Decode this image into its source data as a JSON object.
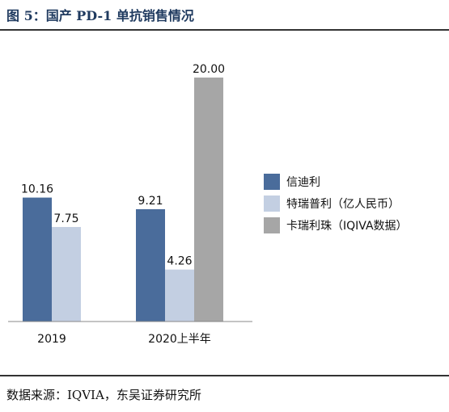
{
  "header": {
    "title": "图 5：国产 PD-1 单抗销售情况"
  },
  "footer": {
    "source": "数据来源：IQVIA，东吴证券研究所"
  },
  "chart_data": {
    "type": "bar",
    "categories": [
      "2019",
      "2020上半年"
    ],
    "series": [
      {
        "name": "信迪利",
        "values": [
          10.16,
          9.21
        ],
        "color": "#4a6c9b"
      },
      {
        "name": "特瑞普利（亿人民币）",
        "values": [
          7.75,
          4.26
        ],
        "color": "#c3cfe2"
      },
      {
        "name": "卡瑞利珠（IQIVA数据）",
        "values": [
          null,
          20.0
        ],
        "color": "#a6a6a6"
      }
    ],
    "data_labels": [
      [
        "10.16",
        "9.21"
      ],
      [
        "7.75",
        "4.26"
      ],
      [
        "",
        "20.00"
      ]
    ],
    "ylim": [
      0,
      20
    ],
    "grid": false,
    "legend_position": "right"
  }
}
